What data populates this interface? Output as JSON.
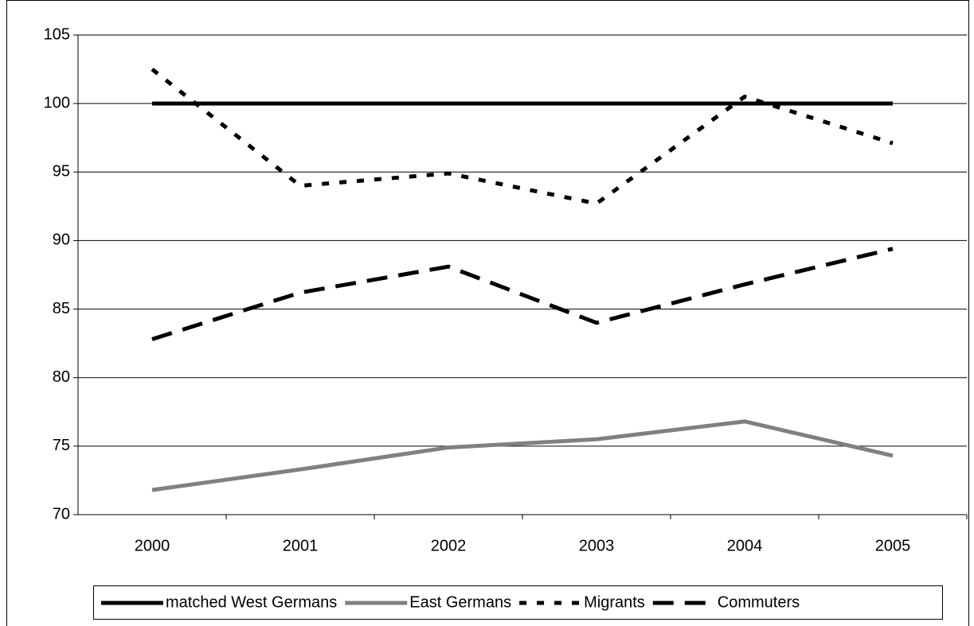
{
  "chart_data": {
    "type": "line",
    "categories": [
      "2000",
      "2001",
      "2002",
      "2003",
      "2004",
      "2005"
    ],
    "series": [
      {
        "name": "matched West Germans",
        "color": "#000000",
        "dash": "solid",
        "values": [
          100,
          100,
          100,
          100,
          100,
          100
        ]
      },
      {
        "name": "East Germans",
        "color": "#808080",
        "dash": "solid",
        "values": [
          71.8,
          73.3,
          74.9,
          75.5,
          76.8,
          74.3
        ]
      },
      {
        "name": "Migrants",
        "color": "#000000",
        "dash": "short",
        "values": [
          102.5,
          94.0,
          94.9,
          92.7,
          100.5,
          97.1
        ]
      },
      {
        "name": "Commuters",
        "color": "#000000",
        "dash": "long",
        "values": [
          82.8,
          86.2,
          88.1,
          84.0,
          86.8,
          89.4
        ]
      }
    ],
    "ylim": [
      70,
      105
    ],
    "yticks": [
      70,
      75,
      80,
      85,
      90,
      95,
      100,
      105
    ],
    "grid": true,
    "legend": "bottom"
  }
}
